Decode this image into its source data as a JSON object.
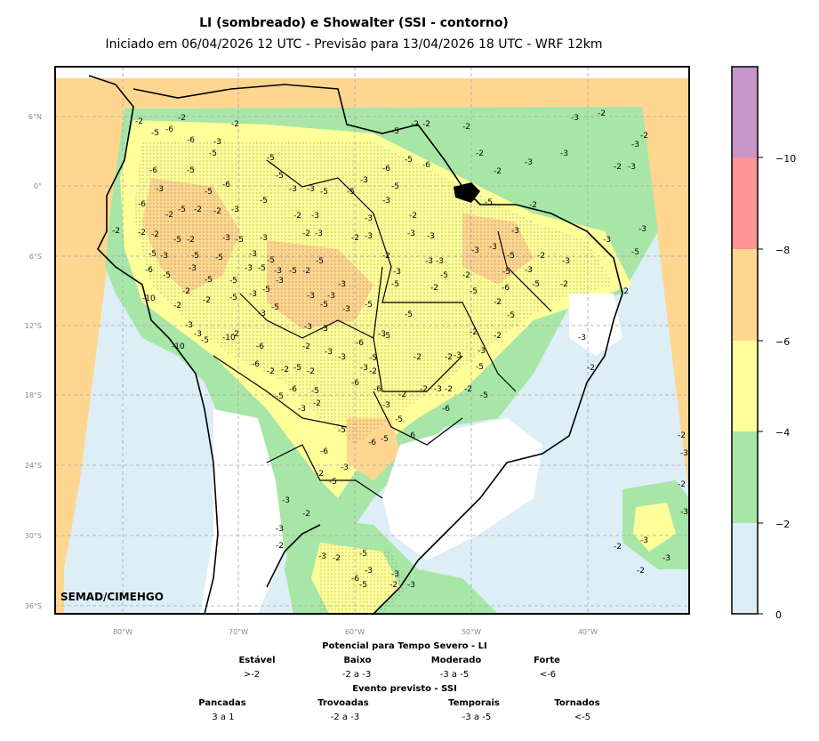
{
  "title": "LI (sombreado) e Showalter (SSI - contorno)",
  "subtitle": "Iniciado em 06/04/2026 12 UTC - Previsão para 13/04/2026 18 UTC - WRF 12km",
  "watermark": "SEMAD/CIMEHGO",
  "lat_ticks": [
    "6°N",
    "0°",
    "6°S",
    "12°S",
    "18°S",
    "24°S",
    "30°S",
    "36°S"
  ],
  "lon_ticks": [
    "80°W",
    "70°W",
    "60°W",
    "50°W",
    "40°W"
  ],
  "colorbar": {
    "labels": [
      "0",
      "−2",
      "−4",
      "−6",
      "−8",
      "−10"
    ],
    "colors": [
      "#ddeef6",
      "#a8e6a8",
      "#ffff99",
      "#ffd68f",
      "#ff9494",
      "#c896c8"
    ]
  },
  "li_legend": {
    "heading": "Potencial para Tempo Severo - LI",
    "categories": [
      {
        "name": "Estável",
        "range": ">-2"
      },
      {
        "name": "Baixo",
        "range": "-2 a -3"
      },
      {
        "name": "Moderado",
        "range": "-3 a -5"
      },
      {
        "name": "Forte",
        "range": "<-6"
      }
    ]
  },
  "ssi_legend": {
    "heading": "Evento previsto - SSI",
    "categories": [
      {
        "name": "Pancadas",
        "range": "3 a 1"
      },
      {
        "name": "Trovoadas",
        "range": "-2 a -3"
      },
      {
        "name": "Temporais",
        "range": "-3 a -5"
      },
      {
        "name": "Tornados",
        "range": "<-5"
      }
    ]
  }
}
